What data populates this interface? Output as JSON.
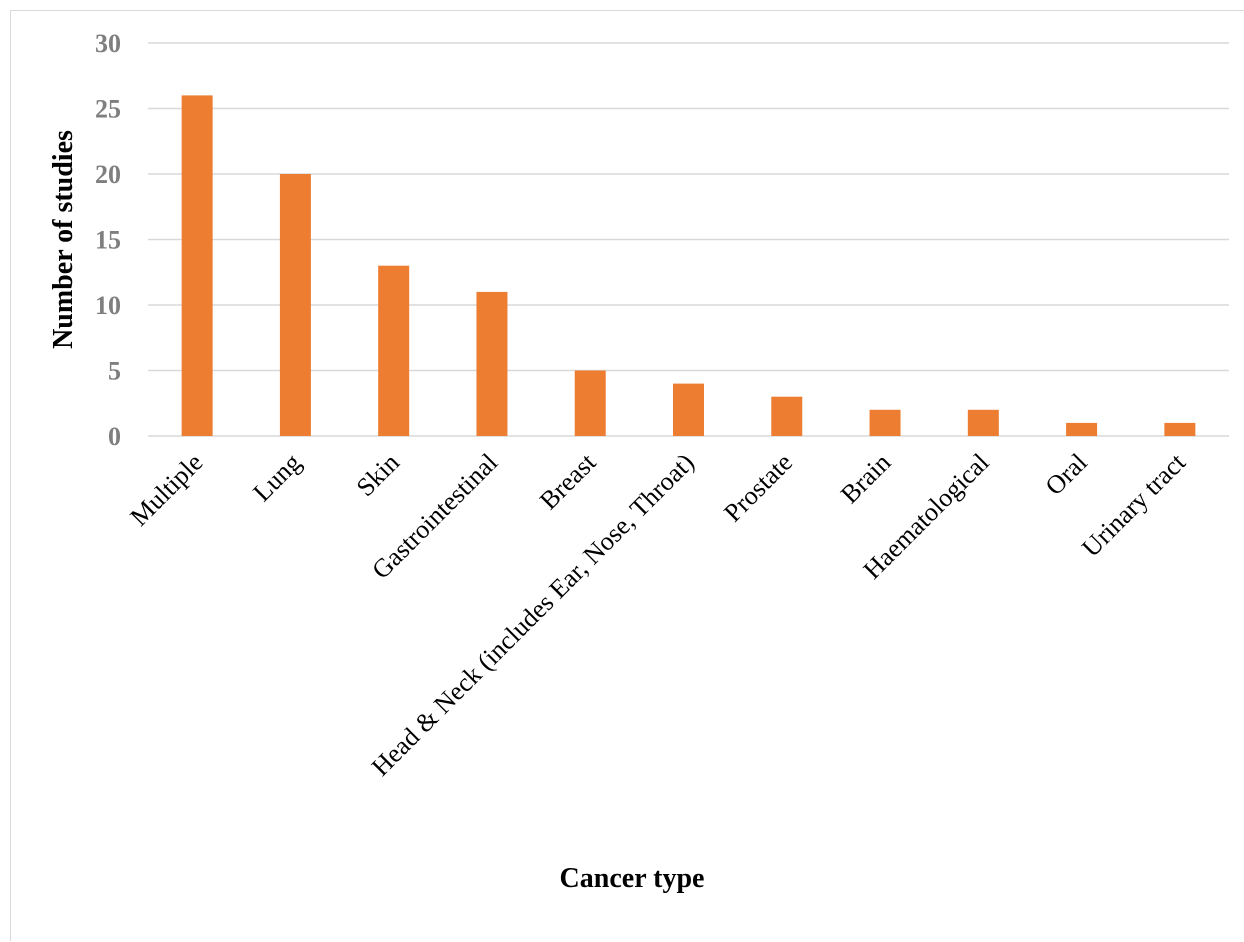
{
  "chart_data": {
    "type": "bar",
    "title": "",
    "xlabel": "Cancer type",
    "ylabel": "Number of studies",
    "categories": [
      "Multiple",
      "Lung",
      "Skin",
      "Gastrointestinal",
      "Breast",
      "Head & Neck (includes Ear, Nose, Throat)",
      "Prostate",
      "Brain",
      "Haematological",
      "Oral",
      "Urinary tract"
    ],
    "values": [
      26,
      20,
      13,
      11,
      5,
      4,
      3,
      2,
      2,
      1,
      1
    ],
    "ylim": [
      0,
      30
    ],
    "yticks": [
      0,
      5,
      10,
      15,
      20,
      25,
      30
    ],
    "grid": true,
    "legend": "none",
    "bar_color": "#ed7d31",
    "grid_color": "#d9d9d9",
    "tick_label_color": "#7f7f7f"
  }
}
